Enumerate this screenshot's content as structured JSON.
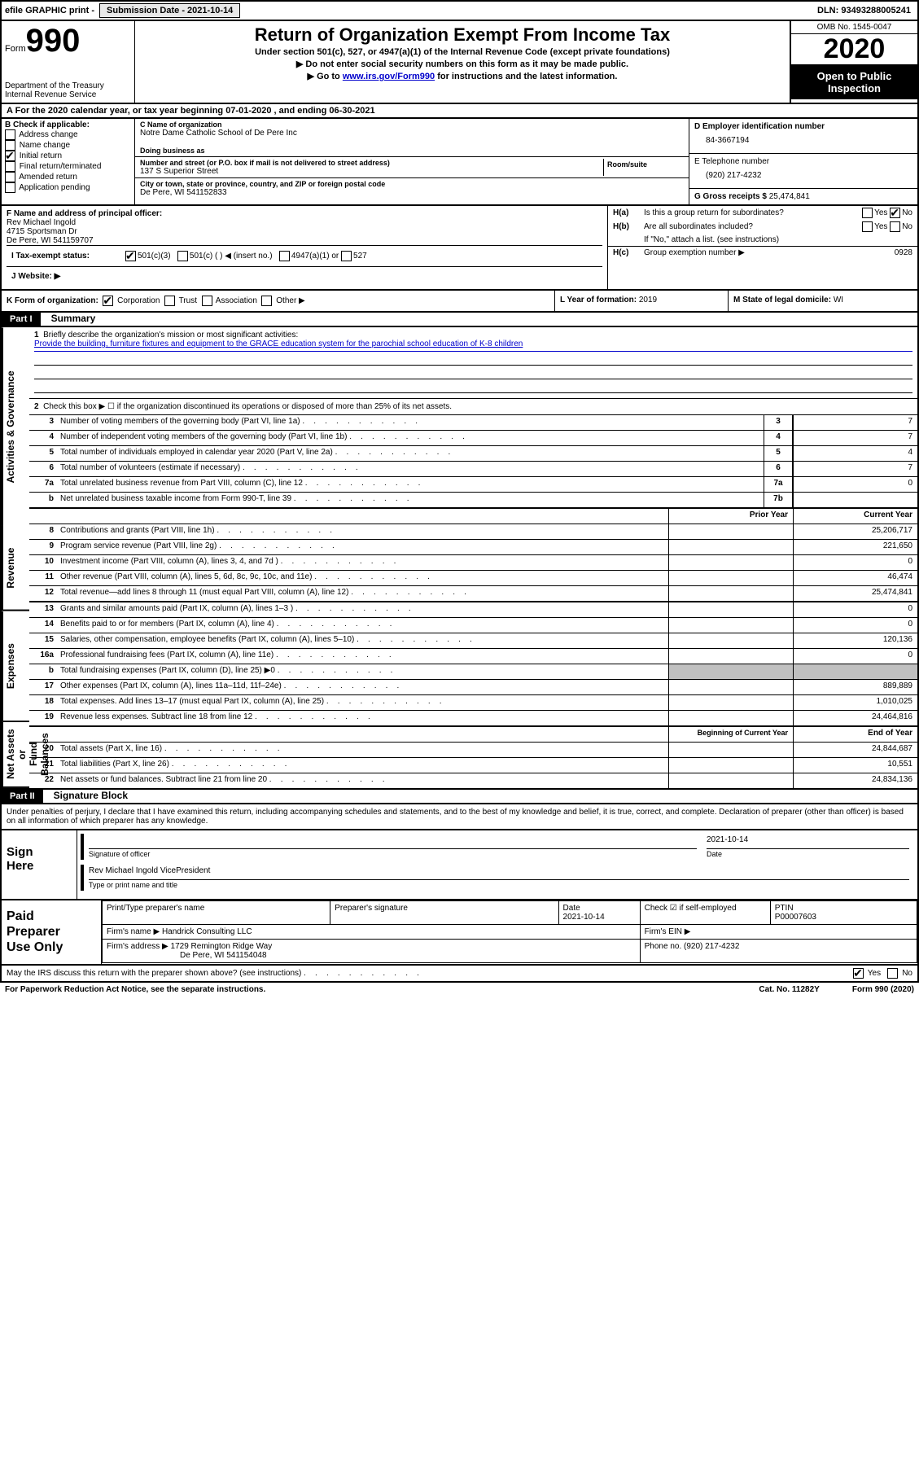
{
  "topbar": {
    "efile": "efile GRAPHIC print -",
    "submission_label": "Submission Date - 2021-10-14",
    "dln": "DLN: 93493288005241"
  },
  "header": {
    "form_label": "Form",
    "form_number": "990",
    "dept": "Department of the Treasury\nInternal Revenue Service",
    "title": "Return of Organization Exempt From Income Tax",
    "sub1": "Under section 501(c), 527, or 4947(a)(1) of the Internal Revenue Code (except private foundations)",
    "sub2": "▶ Do not enter social security numbers on this form as it may be made public.",
    "sub3_pre": "▶ Go to ",
    "sub3_link": "www.irs.gov/Form990",
    "sub3_post": " for instructions and the latest information.",
    "omb": "OMB No. 1545-0047",
    "year": "2020",
    "inspection": "Open to Public\nInspection"
  },
  "line_a": "A For the 2020 calendar year, or tax year beginning 07-01-2020   , and ending 06-30-2021",
  "section_b": {
    "title": "B Check if applicable:",
    "items": [
      "Address change",
      "Name change",
      "Initial return",
      "Final return/terminated",
      "Amended return",
      "Application pending"
    ],
    "checked": [
      false,
      false,
      true,
      false,
      false,
      false
    ]
  },
  "section_c": {
    "name_label": "C Name of organization",
    "name": "Notre Dame Catholic School of De Pere Inc",
    "dba_label": "Doing business as",
    "addr_label": "Number and street (or P.O. box if mail is not delivered to street address)",
    "room_label": "Room/suite",
    "addr": "137 S Superior Street",
    "city_label": "City or town, state or province, country, and ZIP or foreign postal code",
    "city": "De Pere, WI  541152833"
  },
  "section_d": {
    "ein_label": "D Employer identification number",
    "ein": "84-3667194",
    "phone_label": "E Telephone number",
    "phone": "(920) 217-4232",
    "gross_label": "G Gross receipts $",
    "gross": "25,474,841"
  },
  "section_f": {
    "label": "F  Name and address of principal officer:",
    "name": "Rev Michael Ingold",
    "addr1": "4715 Sportsman Dr",
    "addr2": "De Pere, WI  541159707"
  },
  "section_h": {
    "ha_label": "H(a)",
    "ha_text": "Is this a group return for subordinates?",
    "hb_label": "H(b)",
    "hb_text": "Are all subordinates included?",
    "hb_note": "If \"No,\" attach a list. (see instructions)",
    "hc_label": "H(c)",
    "hc_text": "Group exemption number ▶",
    "hc_val": "0928",
    "yes": "Yes",
    "no": "No"
  },
  "section_i": {
    "label": "I    Tax-exempt status:",
    "opts": [
      "501(c)(3)",
      "501(c) (  ) ◀ (insert no.)",
      "4947(a)(1) or",
      "527"
    ]
  },
  "section_j": {
    "label": "J    Website: ▶"
  },
  "section_k": {
    "label": "K Form of organization:",
    "opts": [
      "Corporation",
      "Trust",
      "Association",
      "Other ▶"
    ],
    "l_label": "L Year of formation:",
    "l_val": "2019",
    "m_label": "M State of legal domicile:",
    "m_val": "WI"
  },
  "part1": {
    "header": "Part I",
    "title": "Summary"
  },
  "activities_label": "Activities & Governance",
  "revenue_label": "Revenue",
  "expenses_label": "Expenses",
  "netassets_label": "Net Assets or\nFund Balances",
  "mission": {
    "num": "1",
    "label": "Briefly describe the organization's mission or most significant activities:",
    "text": "Provide the building, furniture fixtures and equipment to the GRACE education system for the parochial school education of K-8 children"
  },
  "line2": {
    "num": "2",
    "text": "Check this box ▶ ☐  if the organization discontinued its operations or disposed of more than 25% of its net assets."
  },
  "summary_lines": [
    {
      "num": "3",
      "desc": "Number of voting members of the governing body (Part VI, line 1a)",
      "lbl": "3",
      "val": "7"
    },
    {
      "num": "4",
      "desc": "Number of independent voting members of the governing body (Part VI, line 1b)",
      "lbl": "4",
      "val": "7"
    },
    {
      "num": "5",
      "desc": "Total number of individuals employed in calendar year 2020 (Part V, line 2a)",
      "lbl": "5",
      "val": "4"
    },
    {
      "num": "6",
      "desc": "Total number of volunteers (estimate if necessary)",
      "lbl": "6",
      "val": "7"
    },
    {
      "num": "7a",
      "desc": "Total unrelated business revenue from Part VIII, column (C), line 12",
      "lbl": "7a",
      "val": "0"
    },
    {
      "num": "b",
      "desc": "Net unrelated business taxable income from Form 990-T, line 39",
      "lbl": "7b",
      "val": ""
    }
  ],
  "col_headers": {
    "prior": "Prior Year",
    "current": "Current Year",
    "beg": "Beginning of Current Year",
    "end": "End of Year"
  },
  "revenue_lines": [
    {
      "num": "8",
      "desc": "Contributions and grants (Part VIII, line 1h)",
      "prior": "",
      "curr": "25,206,717"
    },
    {
      "num": "9",
      "desc": "Program service revenue (Part VIII, line 2g)",
      "prior": "",
      "curr": "221,650"
    },
    {
      "num": "10",
      "desc": "Investment income (Part VIII, column (A), lines 3, 4, and 7d )",
      "prior": "",
      "curr": "0"
    },
    {
      "num": "11",
      "desc": "Other revenue (Part VIII, column (A), lines 5, 6d, 8c, 9c, 10c, and 11e)",
      "prior": "",
      "curr": "46,474"
    },
    {
      "num": "12",
      "desc": "Total revenue—add lines 8 through 11 (must equal Part VIII, column (A), line 12)",
      "prior": "",
      "curr": "25,474,841"
    }
  ],
  "expense_lines": [
    {
      "num": "13",
      "desc": "Grants and similar amounts paid (Part IX, column (A), lines 1–3 )",
      "prior": "",
      "curr": "0"
    },
    {
      "num": "14",
      "desc": "Benefits paid to or for members (Part IX, column (A), line 4)",
      "prior": "",
      "curr": "0"
    },
    {
      "num": "15",
      "desc": "Salaries, other compensation, employee benefits (Part IX, column (A), lines 5–10)",
      "prior": "",
      "curr": "120,136"
    },
    {
      "num": "16a",
      "desc": "Professional fundraising fees (Part IX, column (A), line 11e)",
      "prior": "",
      "curr": "0"
    },
    {
      "num": "b",
      "desc": "Total fundraising expenses (Part IX, column (D), line 25) ▶0",
      "prior": "gray",
      "curr": "gray"
    },
    {
      "num": "17",
      "desc": "Other expenses (Part IX, column (A), lines 11a–11d, 11f–24e)",
      "prior": "",
      "curr": "889,889"
    },
    {
      "num": "18",
      "desc": "Total expenses. Add lines 13–17 (must equal Part IX, column (A), line 25)",
      "prior": "",
      "curr": "1,010,025"
    },
    {
      "num": "19",
      "desc": "Revenue less expenses. Subtract line 18 from line 12",
      "prior": "",
      "curr": "24,464,816"
    }
  ],
  "netasset_lines": [
    {
      "num": "20",
      "desc": "Total assets (Part X, line 16)",
      "prior": "",
      "curr": "24,844,687"
    },
    {
      "num": "21",
      "desc": "Total liabilities (Part X, line 26)",
      "prior": "",
      "curr": "10,551"
    },
    {
      "num": "22",
      "desc": "Net assets or fund balances. Subtract line 21 from line 20",
      "prior": "",
      "curr": "24,834,136"
    }
  ],
  "part2": {
    "header": "Part II",
    "title": "Signature Block"
  },
  "penalties_text": "Under penalties of perjury, I declare that I have examined this return, including accompanying schedules and statements, and to the best of my knowledge and belief, it is true, correct, and complete. Declaration of preparer (other than officer) is based on all information of which preparer has any knowledge.",
  "sign": {
    "left": "Sign\nHere",
    "sig_label": "Signature of officer",
    "date_label": "Date",
    "date": "2021-10-14",
    "name": "Rev Michael Ingold  VicePresident",
    "name_label": "Type or print name and title"
  },
  "preparer": {
    "left": "Paid\nPreparer\nUse Only",
    "print_label": "Print/Type preparer's name",
    "sig_label": "Preparer's signature",
    "date_label": "Date",
    "date": "2021-10-14",
    "check_label": "Check ☑ if self-employed",
    "ptin_label": "PTIN",
    "ptin": "P00007603",
    "firm_name_label": "Firm's name    ▶",
    "firm_name": "Handrick Consulting LLC",
    "firm_ein_label": "Firm's EIN ▶",
    "firm_addr_label": "Firm's address ▶",
    "firm_addr1": "1729 Remington Ridge Way",
    "firm_addr2": "De Pere, WI  541154048",
    "phone_label": "Phone no.",
    "phone": "(920) 217-4232"
  },
  "discuss": {
    "text": "May the IRS discuss this return with the preparer shown above? (see instructions)",
    "yes": "Yes",
    "no": "No"
  },
  "footer": {
    "left": "For Paperwork Reduction Act Notice, see the separate instructions.",
    "mid": "Cat. No. 11282Y",
    "right": "Form 990 (2020)"
  }
}
